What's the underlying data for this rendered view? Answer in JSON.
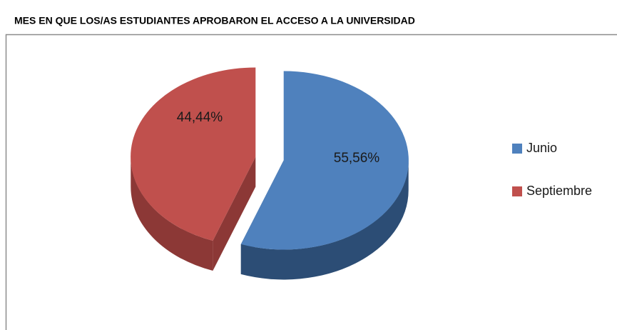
{
  "chart_data": {
    "type": "pie",
    "title": "MES EN QUE LOS/AS ESTUDIANTES APROBARON EL ACCESO A LA UNIVERSIDAD",
    "categories": [
      "Junio",
      "Septiembre"
    ],
    "values": [
      55.56,
      44.44
    ],
    "value_labels": [
      "55,56%",
      "44,44%"
    ],
    "colors": [
      "#4f81bd",
      "#c0504d"
    ],
    "side_colors": [
      "#2c4d75",
      "#8c3836"
    ],
    "legend": "right"
  }
}
